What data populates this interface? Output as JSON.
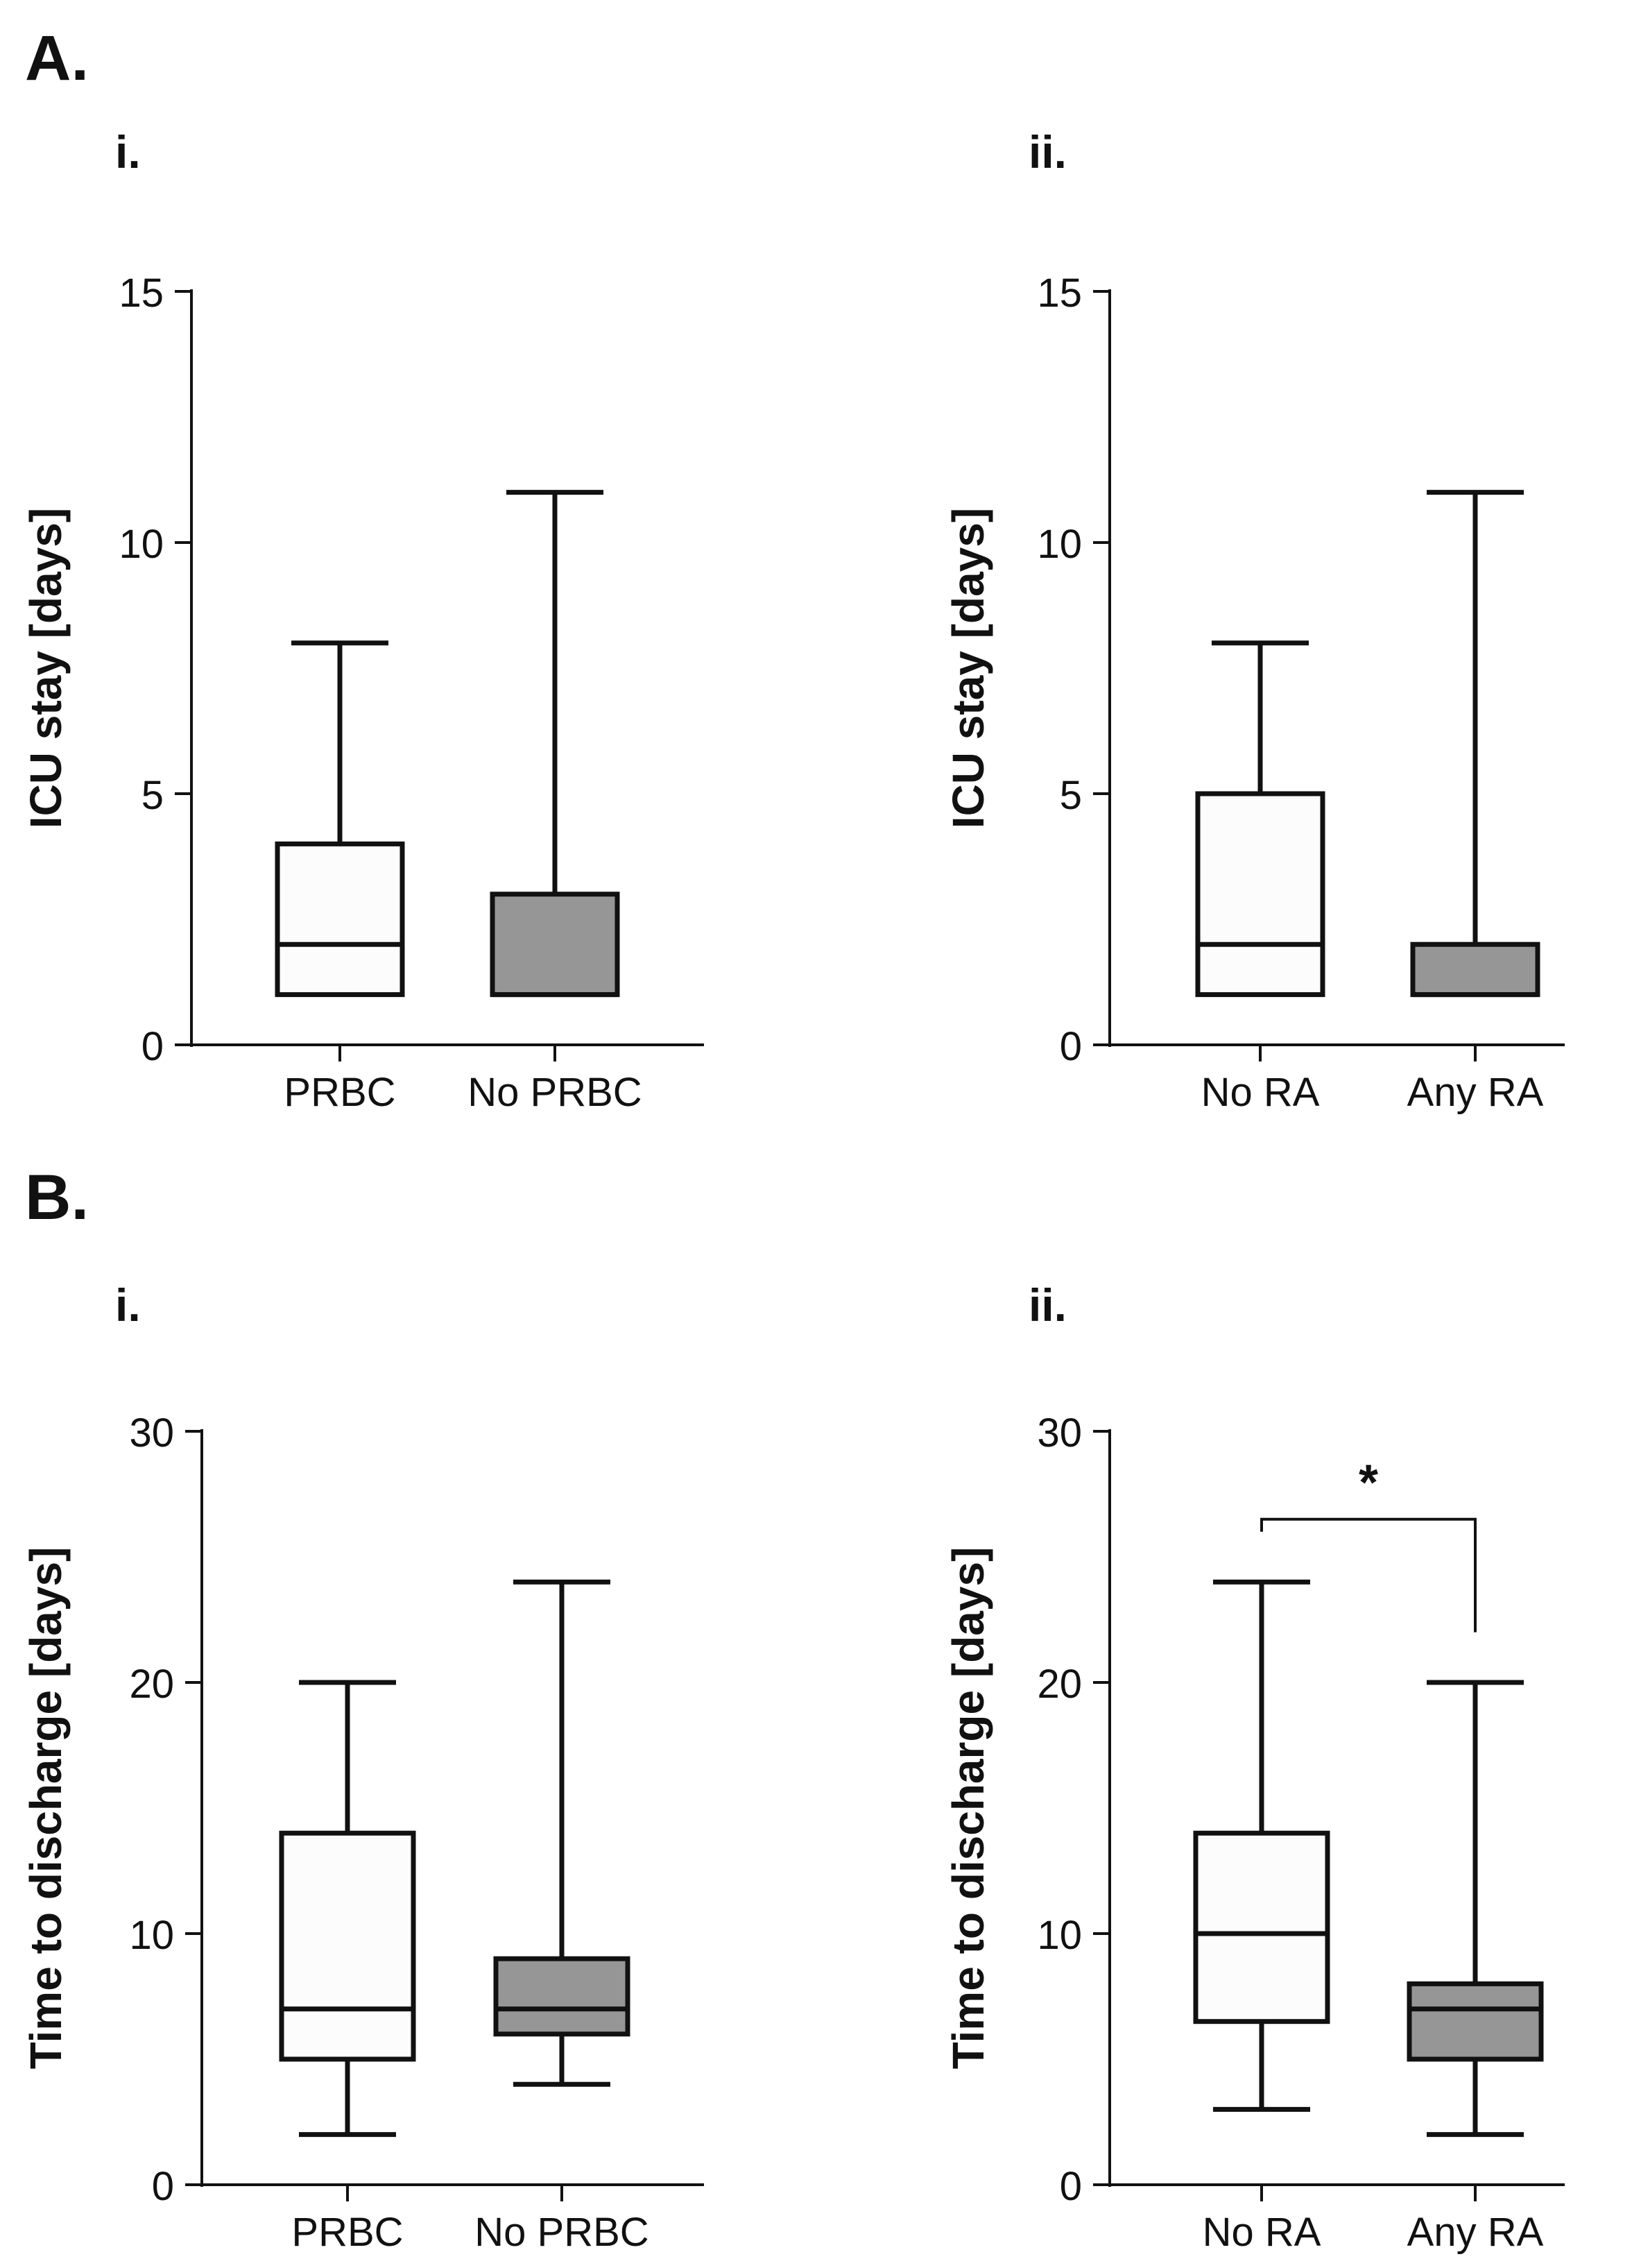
{
  "panels": {
    "A": "A.",
    "B": "B."
  },
  "colors": {
    "white_box": "#fcfcfc",
    "gray_box": "#969696",
    "stroke": "#111111"
  },
  "chart_data": [
    {
      "id": "chartAi",
      "type": "boxplot",
      "sublabel": "i.",
      "ylabel": "ICU stay [days]",
      "ylim": [
        0,
        15
      ],
      "yticks": [
        0,
        5,
        10,
        15
      ],
      "categories": [
        "PRBC",
        "No PRBC"
      ],
      "boxes": [
        {
          "min": 1,
          "q1": 1,
          "median": 2,
          "q3": 4,
          "max": 8,
          "fill": "white"
        },
        {
          "min": 1,
          "q1": 1,
          "median": 1,
          "q3": 3,
          "max": 11,
          "fill": "gray"
        }
      ]
    },
    {
      "id": "chartAii",
      "type": "boxplot",
      "sublabel": "ii.",
      "ylabel": "ICU stay [days]",
      "ylim": [
        0,
        15
      ],
      "yticks": [
        0,
        5,
        10,
        15
      ],
      "categories": [
        "No RA",
        "Any RA"
      ],
      "boxes": [
        {
          "min": 1,
          "q1": 1,
          "median": 2,
          "q3": 5,
          "max": 8,
          "fill": "white"
        },
        {
          "min": 1,
          "q1": 1,
          "median": 1,
          "q3": 2,
          "max": 11,
          "fill": "gray"
        }
      ]
    },
    {
      "id": "chartBi",
      "type": "boxplot",
      "sublabel": "i.",
      "ylabel": "Time to discharge [days]",
      "ylim": [
        0,
        30
      ],
      "yticks": [
        0,
        10,
        20,
        30
      ],
      "categories": [
        "PRBC",
        "No PRBC"
      ],
      "boxes": [
        {
          "min": 2,
          "q1": 5,
          "median": 7,
          "q3": 14,
          "max": 20,
          "fill": "white"
        },
        {
          "min": 4,
          "q1": 6,
          "median": 7,
          "q3": 9,
          "max": 24,
          "fill": "gray"
        }
      ]
    },
    {
      "id": "chartBii",
      "type": "boxplot",
      "sublabel": "ii.",
      "ylabel": "Time to discharge [days]",
      "ylim": [
        0,
        30
      ],
      "yticks": [
        0,
        10,
        20,
        30
      ],
      "categories": [
        "No RA",
        "Any RA"
      ],
      "boxes": [
        {
          "min": 3,
          "q1": 6.5,
          "median": 10,
          "q3": 14,
          "max": 24,
          "fill": "white"
        },
        {
          "min": 2,
          "q1": 5,
          "median": 7,
          "q3": 8,
          "max": 20,
          "fill": "gray"
        }
      ],
      "significance": {
        "label": "*",
        "level": 26.5,
        "left_end": 26,
        "right_end": 22
      }
    }
  ]
}
